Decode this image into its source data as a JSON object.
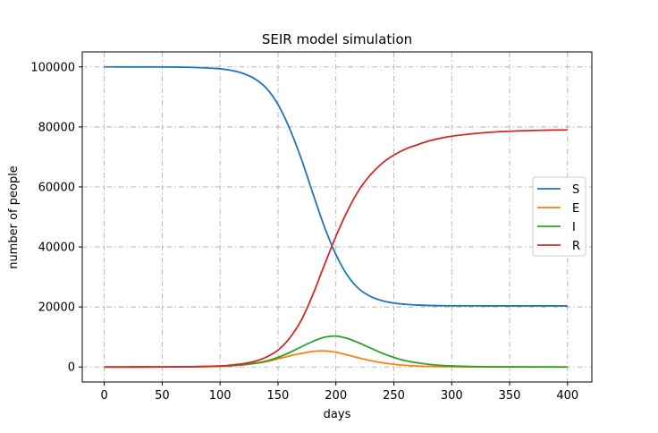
{
  "chart_data": {
    "type": "line",
    "title": "SEIR model simulation",
    "xlabel": "days",
    "ylabel": "number of people",
    "xlim": [
      -19,
      421
    ],
    "ylim": [
      -5000,
      105000
    ],
    "xticks": [
      0,
      50,
      100,
      150,
      200,
      250,
      300,
      350,
      400
    ],
    "yticks": [
      0,
      20000,
      40000,
      60000,
      80000,
      100000
    ],
    "grid": true,
    "legend_position": "center-right",
    "x": [
      0,
      25,
      50,
      75,
      100,
      110,
      120,
      130,
      140,
      150,
      160,
      170,
      180,
      190,
      200,
      210,
      220,
      230,
      240,
      250,
      260,
      270,
      280,
      290,
      300,
      320,
      340,
      360,
      380,
      400
    ],
    "series": [
      {
        "name": "S",
        "color": "#1f77b4",
        "values": [
          100000,
          99990,
          99960,
          99850,
          99350,
          98800,
          97800,
          96000,
          92900,
          87500,
          79500,
          69500,
          58000,
          46800,
          37500,
          30500,
          26000,
          23500,
          22100,
          21300,
          20900,
          20650,
          20500,
          20430,
          20400,
          20370,
          20360,
          20355,
          20352,
          20350
        ]
      },
      {
        "name": "E",
        "color": "#ff7f0e",
        "values": [
          0,
          5,
          20,
          80,
          250,
          450,
          700,
          1150,
          1800,
          2700,
          3700,
          4500,
          5200,
          5350,
          4900,
          4000,
          3000,
          2100,
          1400,
          900,
          550,
          330,
          200,
          120,
          70,
          25,
          10,
          4,
          2,
          1
        ]
      },
      {
        "name": "I",
        "color": "#2ca02c",
        "values": [
          0,
          5,
          20,
          80,
          250,
          450,
          750,
          1250,
          2000,
          3200,
          4800,
          6700,
          8500,
          9900,
          10300,
          9500,
          8000,
          6300,
          4600,
          3200,
          2100,
          1400,
          900,
          550,
          350,
          130,
          50,
          20,
          8,
          3
        ]
      },
      {
        "name": "R",
        "color": "#d62728",
        "values": [
          0,
          5,
          20,
          100,
          350,
          650,
          1100,
          1900,
          3300,
          5600,
          9600,
          15500,
          24000,
          33900,
          43500,
          52000,
          59000,
          64100,
          67900,
          70600,
          72600,
          74000,
          75300,
          76200,
          76900,
          77800,
          78400,
          78700,
          78900,
          79000
        ]
      }
    ]
  }
}
